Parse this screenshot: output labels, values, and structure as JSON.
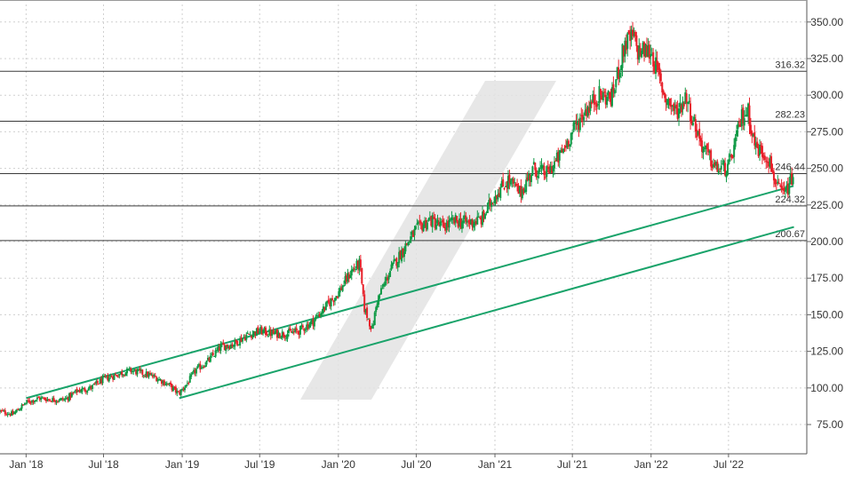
{
  "chart_data": {
    "type": "candlestick",
    "title": "",
    "xlabel": "",
    "ylabel": "",
    "x_range": [
      "2017-11-01",
      "2022-12-31"
    ],
    "y_range": [
      55,
      362
    ],
    "grid": true,
    "colors": {
      "up": "#109a46",
      "down": "#e8202a",
      "trendline": "#19a36a",
      "level_line": "#3a3a3a",
      "watermark": "#e3e3e3",
      "grid": "#d0d0d0"
    },
    "y_ticks": [
      "75.00",
      "100.00",
      "125.00",
      "150.00",
      "175.00",
      "200.00",
      "225.00",
      "250.00",
      "275.00",
      "300.00",
      "325.00",
      "350.00"
    ],
    "x_ticks": [
      {
        "date": "2018-01-01",
        "label": "Jan '18"
      },
      {
        "date": "2018-07-01",
        "label": "Jul '18"
      },
      {
        "date": "2019-01-01",
        "label": "Jan '19"
      },
      {
        "date": "2019-07-01",
        "label": "Jul '19"
      },
      {
        "date": "2020-01-01",
        "label": "Jan '20"
      },
      {
        "date": "2020-07-01",
        "label": "Jul '20"
      },
      {
        "date": "2021-01-01",
        "label": "Jan '21"
      },
      {
        "date": "2021-07-01",
        "label": "Jul '21"
      },
      {
        "date": "2022-01-01",
        "label": "Jan '22"
      },
      {
        "date": "2022-07-01",
        "label": "Jul '22"
      }
    ],
    "levels": [
      {
        "value": 316.32,
        "label": "316.32"
      },
      {
        "value": 282.23,
        "label": "282.23"
      },
      {
        "value": 246.44,
        "label": "246.44"
      },
      {
        "value": 224.32,
        "label": "224.32"
      },
      {
        "value": 200.67,
        "label": "200.67"
      }
    ],
    "trendlines": [
      {
        "name": "upper",
        "x": [
          "2018-01-01",
          "2022-11-30"
        ],
        "y": [
          93,
          238
        ]
      },
      {
        "name": "lower",
        "x": [
          "2018-12-25",
          "2022-12-01"
        ],
        "y": [
          93,
          210
        ]
      }
    ],
    "price_path": {
      "dates": [
        "2017-11-01",
        "2017-12-01",
        "2018-01-01",
        "2018-02-01",
        "2018-03-01",
        "2018-04-01",
        "2018-05-01",
        "2018-06-01",
        "2018-07-01",
        "2018-08-01",
        "2018-09-01",
        "2018-10-01",
        "2018-11-01",
        "2018-12-01",
        "2018-12-24",
        "2019-01-15",
        "2019-02-01",
        "2019-03-01",
        "2019-04-01",
        "2019-05-01",
        "2019-06-01",
        "2019-07-01",
        "2019-08-01",
        "2019-09-01",
        "2019-10-01",
        "2019-11-01",
        "2019-12-01",
        "2020-01-01",
        "2020-02-01",
        "2020-02-20",
        "2020-03-01",
        "2020-03-20",
        "2020-04-01",
        "2020-05-01",
        "2020-06-01",
        "2020-07-01",
        "2020-08-01",
        "2020-09-01",
        "2020-10-01",
        "2020-11-01",
        "2020-12-01",
        "2021-01-01",
        "2021-02-01",
        "2021-03-01",
        "2021-04-01",
        "2021-05-01",
        "2021-06-01",
        "2021-07-01",
        "2021-08-01",
        "2021-09-01",
        "2021-10-01",
        "2021-11-01",
        "2021-11-20",
        "2021-12-01",
        "2022-01-01",
        "2022-02-01",
        "2022-03-01",
        "2022-03-25",
        "2022-04-01",
        "2022-05-01",
        "2022-06-01",
        "2022-07-01",
        "2022-08-01",
        "2022-08-15",
        "2022-09-01",
        "2022-10-01",
        "2022-10-25",
        "2022-11-10",
        "2022-11-30"
      ],
      "values": [
        84,
        82,
        90,
        93,
        92,
        92,
        98,
        100,
        106,
        109,
        112,
        110,
        107,
        102,
        96,
        104,
        112,
        118,
        128,
        130,
        136,
        139,
        137,
        137,
        139,
        145,
        155,
        165,
        180,
        185,
        155,
        140,
        160,
        180,
        195,
        208,
        215,
        210,
        214,
        213,
        215,
        232,
        242,
        233,
        250,
        246,
        258,
        275,
        290,
        300,
        298,
        335,
        340,
        330,
        330,
        300,
        288,
        300,
        290,
        265,
        250,
        250,
        285,
        290,
        265,
        258,
        235,
        232,
        246
      ]
    }
  }
}
